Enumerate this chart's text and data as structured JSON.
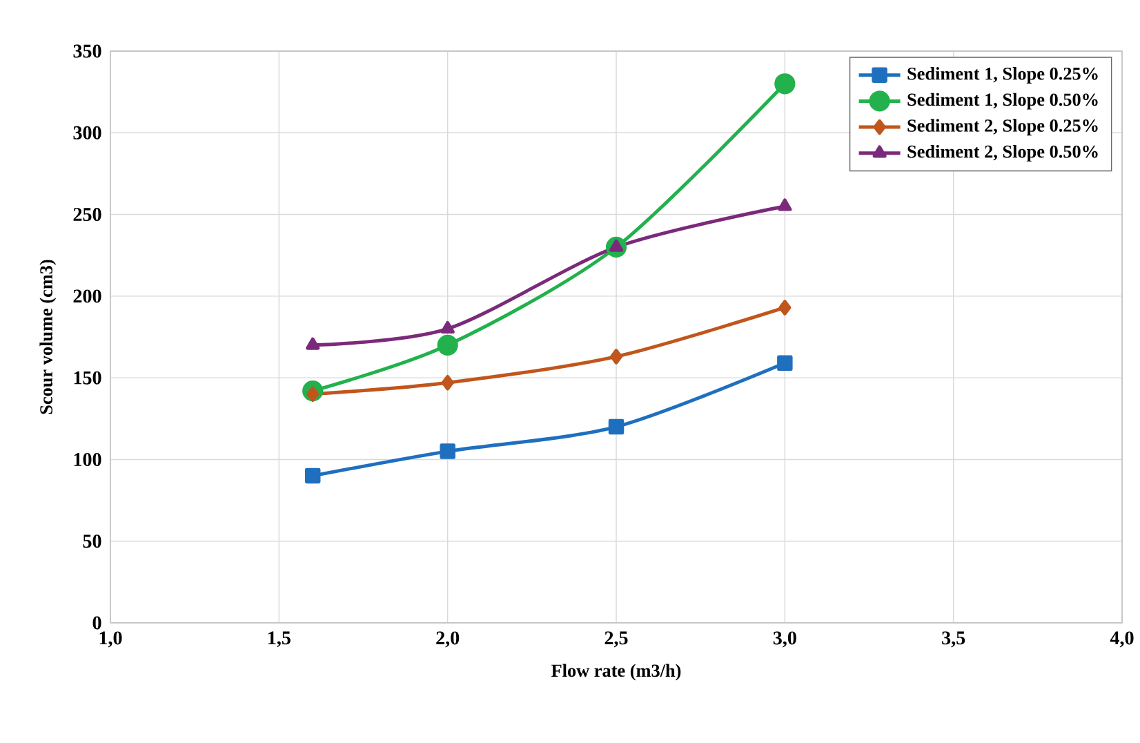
{
  "chart_data": {
    "type": "line",
    "xlabel": "Flow rate (m3/h)",
    "ylabel": "Scour volume (cm3)",
    "xlim": [
      1.0,
      4.0
    ],
    "xticks": [
      {
        "value": 1.0,
        "label": "1,0"
      },
      {
        "value": 1.5,
        "label": "1,5"
      },
      {
        "value": 2.0,
        "label": "2,0"
      },
      {
        "value": 2.5,
        "label": "2,5"
      },
      {
        "value": 3.0,
        "label": "3,0"
      },
      {
        "value": 3.5,
        "label": "3,5"
      },
      {
        "value": 4.0,
        "label": "4,0"
      }
    ],
    "ylim": [
      0,
      350
    ],
    "yticks": [
      0,
      50,
      100,
      150,
      200,
      250,
      300,
      350
    ],
    "grid": true,
    "legend": "top right",
    "x": [
      1.6,
      2.0,
      2.5,
      3.0
    ],
    "series": [
      {
        "name": "Sediment 1, Slope 0.25%",
        "color": "#1f6fbf",
        "marker": "square",
        "values": [
          90,
          105,
          120,
          159
        ]
      },
      {
        "name": "Sediment 1, Slope 0.50%",
        "color": "#22b14c",
        "marker": "circle",
        "values": [
          142,
          170,
          230,
          330
        ]
      },
      {
        "name": "Sediment 2, Slope 0.25%",
        "color": "#c0561c",
        "marker": "diamond",
        "values": [
          140,
          147,
          163,
          193
        ]
      },
      {
        "name": "Sediment 2, Slope 0.50%",
        "color": "#7b2a7b",
        "marker": "triangle",
        "values": [
          170,
          180,
          230,
          255
        ]
      }
    ]
  }
}
